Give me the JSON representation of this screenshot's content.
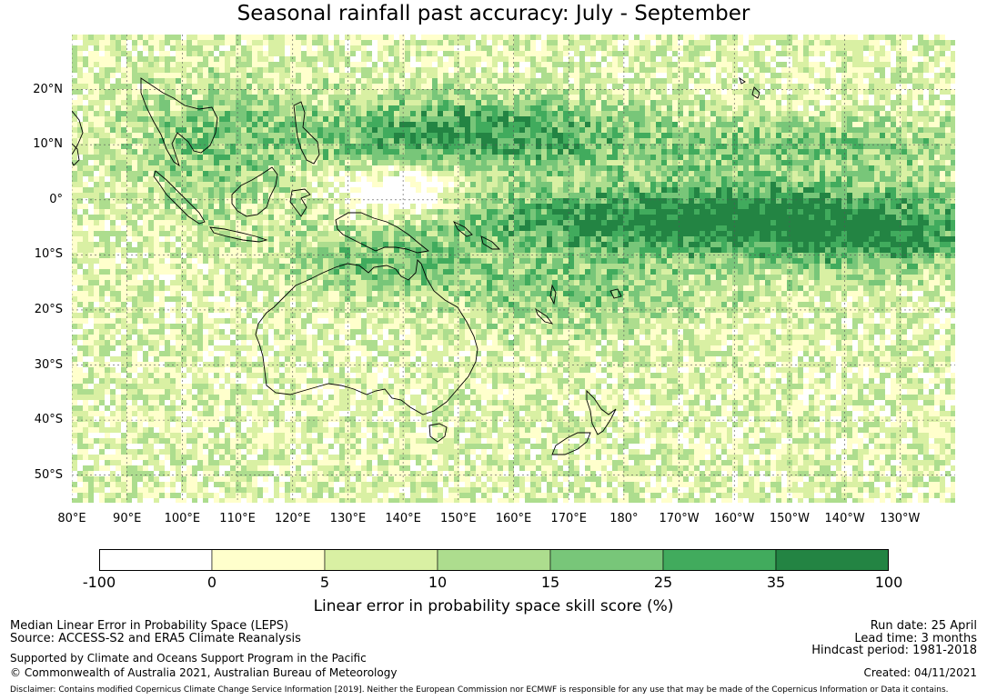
{
  "title": "Seasonal rainfall past accuracy: July - September",
  "map": {
    "lon_range": [
      80,
      240
    ],
    "lat_range": [
      -55,
      30
    ],
    "lat_ticks": [
      {
        "value": 20,
        "label": "20°N"
      },
      {
        "value": 10,
        "label": "10°N"
      },
      {
        "value": 0,
        "label": "0°"
      },
      {
        "value": -10,
        "label": "10°S"
      },
      {
        "value": -20,
        "label": "20°S"
      },
      {
        "value": -30,
        "label": "30°S"
      },
      {
        "value": -40,
        "label": "40°S"
      },
      {
        "value": -50,
        "label": "50°S"
      }
    ],
    "lon_ticks": [
      {
        "value": 80,
        "label": "80°E"
      },
      {
        "value": 90,
        "label": "90°E"
      },
      {
        "value": 100,
        "label": "100°E"
      },
      {
        "value": 110,
        "label": "110°E"
      },
      {
        "value": 120,
        "label": "120°E"
      },
      {
        "value": 130,
        "label": "130°E"
      },
      {
        "value": 140,
        "label": "140°E"
      },
      {
        "value": 150,
        "label": "150°E"
      },
      {
        "value": 160,
        "label": "160°E"
      },
      {
        "value": 170,
        "label": "170°E"
      },
      {
        "value": 180,
        "label": "180°"
      },
      {
        "value": 190,
        "label": "170°W"
      },
      {
        "value": 200,
        "label": "160°W"
      },
      {
        "value": 210,
        "label": "150°W"
      },
      {
        "value": 220,
        "label": "140°W"
      },
      {
        "value": 230,
        "label": "130°W"
      }
    ]
  },
  "colorbar": {
    "ticks": [
      "-100",
      "0",
      "5",
      "10",
      "15",
      "25",
      "35",
      "100"
    ],
    "colors": [
      "#ffffff",
      "#ffffcc",
      "#d9f0a3",
      "#addd8e",
      "#78c679",
      "#41ab5d",
      "#238443"
    ],
    "label": "Linear error in probability space skill score (%)"
  },
  "footer": {
    "line1": "Median Linear Error in Probability Space (LEPS)",
    "line2": "Source: ACCESS-S2 and ERA5 Climate Reanalysis",
    "line3": "Supported by Climate and Oceans Support Program in the Pacific",
    "line4": "© Commonwealth of Australia 2021, Australian Bureau of Meteorology",
    "run_date": "Run date: 25 April",
    "lead_time": "Lead time: 3 months",
    "hindcast": "Hindcast period: 1981-2018",
    "created": "Created: 04/11/2021",
    "disclaimer": "Disclaimer: Contains modified Copernicus Climate Change Service Information [2019]. Neither the European Commission nor ECMWF is responsible for any use that may be made of the Copernicus Information or Data it contains."
  }
}
